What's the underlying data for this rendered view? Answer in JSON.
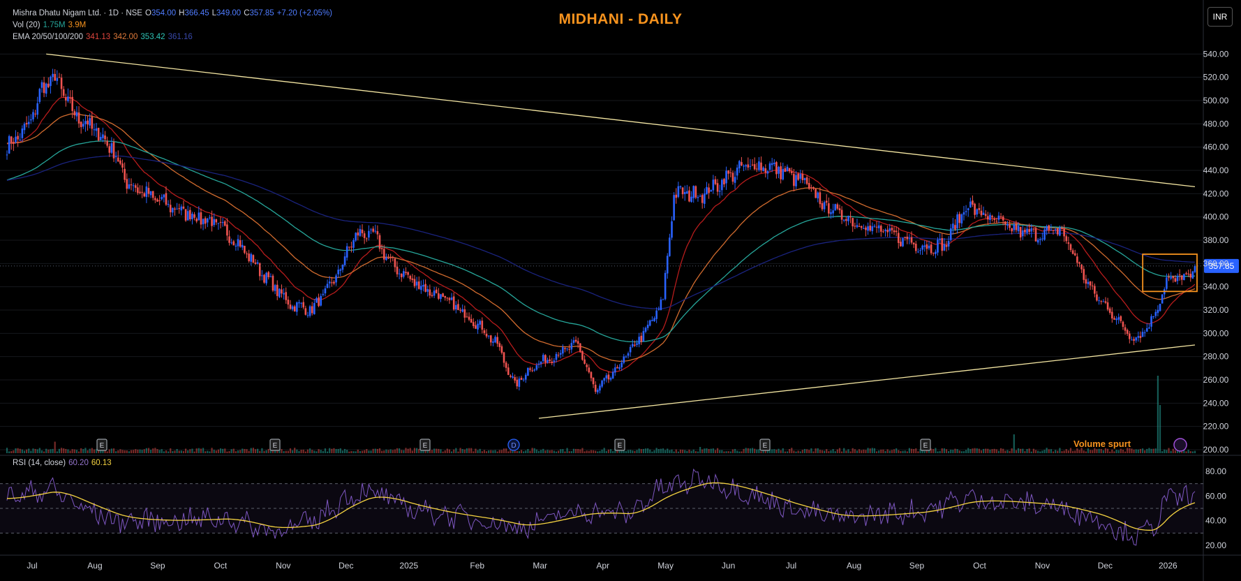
{
  "header": {
    "symbol_line": "Mishra Dhatu Nigam Ltd. · 1D · NSE",
    "open_label": "O",
    "open": "354.00",
    "high_label": "H",
    "high": "366.45",
    "low_label": "L",
    "low": "349.00",
    "close_label": "C",
    "close": "357.85",
    "change": "+7.20 (+2.05%)",
    "vol_label": "Vol (20)",
    "vol_value": "1.75M",
    "vol_ma": "3.9M",
    "ema_label": "EMA 20/50/100/200",
    "ema20": "341.13",
    "ema50": "342.00",
    "ema100": "353.42",
    "ema200": "361.16",
    "rsi_label": "RSI (14, close)",
    "rsi_value": "60.20",
    "rsi_ma": "60.13"
  },
  "title": "MIDHANI - DAILY",
  "currency_button": "INR",
  "annotation_volume": "Volume spurt",
  "price_tag": "357.85",
  "colors": {
    "up": "#2962ff",
    "down": "#ef5350",
    "ema20": "#b71c1c",
    "ema50": "#d16b2e",
    "ema100": "#26a69a",
    "ema200": "#1a237e",
    "trendline": "#f5e7a3",
    "box": "#f7931e",
    "rsi": "#7e57c2",
    "rsi_ma": "#f5d341",
    "title": "#f7931e"
  },
  "chart_data": {
    "type": "candlestick",
    "title": "MIDHANI - DAILY",
    "price_axis": {
      "ticks": [
        200,
        220,
        240,
        260,
        280,
        300,
        320,
        340,
        360,
        380,
        400,
        420,
        440,
        460,
        480,
        500,
        520,
        540
      ],
      "range": [
        197,
        560
      ]
    },
    "x_labels": [
      "Jul",
      "Aug",
      "Sep",
      "Oct",
      "Nov",
      "Dec",
      "2025",
      "Feb",
      "Mar",
      "Apr",
      "May",
      "Jun",
      "Jul",
      "Aug",
      "Sep",
      "Oct",
      "Nov",
      "Dec",
      "2026"
    ],
    "price_anchors": [
      [
        0,
        460
      ],
      [
        10,
        478
      ],
      [
        16,
        510
      ],
      [
        22,
        520
      ],
      [
        30,
        490
      ],
      [
        40,
        475
      ],
      [
        48,
        460
      ],
      [
        55,
        430
      ],
      [
        65,
        418
      ],
      [
        80,
        405
      ],
      [
        95,
        395
      ],
      [
        105,
        380
      ],
      [
        120,
        345
      ],
      [
        130,
        325
      ],
      [
        140,
        320
      ],
      [
        150,
        345
      ],
      [
        160,
        385
      ],
      [
        168,
        385
      ],
      [
        176,
        360
      ],
      [
        186,
        345
      ],
      [
        200,
        330
      ],
      [
        215,
        310
      ],
      [
        225,
        290
      ],
      [
        233,
        255
      ],
      [
        240,
        270
      ],
      [
        255,
        285
      ],
      [
        262,
        290
      ],
      [
        270,
        250
      ],
      [
        278,
        265
      ],
      [
        290,
        295
      ],
      [
        296,
        310
      ],
      [
        301,
        330
      ],
      [
        306,
        420
      ],
      [
        320,
        420
      ],
      [
        335,
        440
      ],
      [
        345,
        445
      ],
      [
        355,
        440
      ],
      [
        365,
        430
      ],
      [
        375,
        410
      ],
      [
        390,
        395
      ],
      [
        405,
        385
      ],
      [
        420,
        375
      ],
      [
        430,
        375
      ],
      [
        440,
        410
      ],
      [
        450,
        400
      ],
      [
        460,
        390
      ],
      [
        470,
        385
      ],
      [
        484,
        388
      ],
      [
        490,
        365
      ],
      [
        498,
        335
      ],
      [
        506,
        320
      ],
      [
        512,
        305
      ],
      [
        518,
        295
      ],
      [
        525,
        310
      ],
      [
        532,
        345
      ],
      [
        545,
        350
      ]
    ],
    "volume_spikes": [
      [
        22,
        0.55
      ],
      [
        318,
        0.3
      ],
      [
        462,
        0.9
      ],
      [
        528,
        3.7
      ],
      [
        529,
        2.3
      ]
    ],
    "rsi_axis": {
      "ticks": [
        20,
        40,
        60,
        80
      ],
      "range": [
        15,
        85
      ],
      "bands": [
        30,
        50,
        70
      ]
    },
    "rsi_anchors": [
      [
        0,
        58
      ],
      [
        20,
        66
      ],
      [
        35,
        50
      ],
      [
        50,
        40
      ],
      [
        75,
        40
      ],
      [
        100,
        42
      ],
      [
        120,
        32
      ],
      [
        140,
        38
      ],
      [
        155,
        58
      ],
      [
        165,
        64
      ],
      [
        185,
        50
      ],
      [
        200,
        45
      ],
      [
        220,
        40
      ],
      [
        235,
        34
      ],
      [
        250,
        42
      ],
      [
        265,
        48
      ],
      [
        285,
        45
      ],
      [
        300,
        66
      ],
      [
        320,
        74
      ],
      [
        340,
        62
      ],
      [
        360,
        50
      ],
      [
        380,
        42
      ],
      [
        400,
        45
      ],
      [
        420,
        48
      ],
      [
        440,
        58
      ],
      [
        460,
        55
      ],
      [
        480,
        52
      ],
      [
        500,
        42
      ],
      [
        515,
        28
      ],
      [
        525,
        32
      ],
      [
        532,
        58
      ],
      [
        545,
        60
      ]
    ],
    "trendlines": [
      {
        "name": "upper resistance",
        "from": [
          18,
          540
        ],
        "to": [
          545,
          426
        ]
      },
      {
        "name": "lower support",
        "from": [
          244,
          227
        ],
        "to": [
          545,
          290
        ]
      }
    ],
    "consolidation_box": {
      "x": [
        522,
        545
      ],
      "y": [
        336,
        368
      ]
    },
    "last_close": 357.85
  }
}
